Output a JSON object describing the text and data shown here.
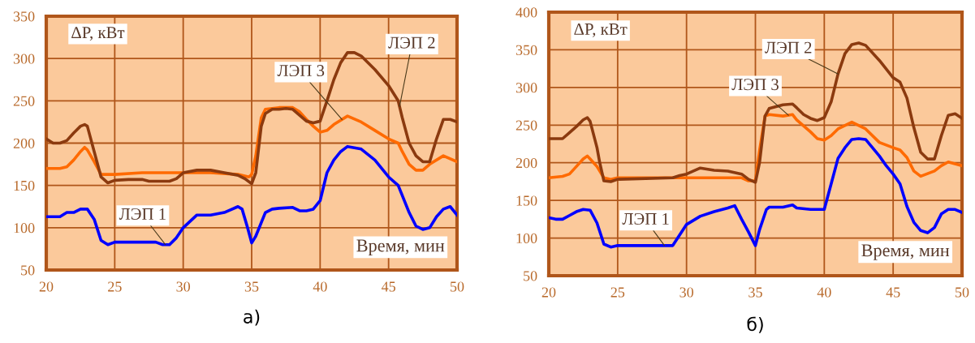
{
  "chart_data": [
    {
      "type": "line",
      "title": "а)",
      "xlabel": "Время, мин",
      "ylabel": "ΔP, кВт",
      "xlim": [
        20,
        50
      ],
      "xticks": [
        20,
        25,
        30,
        35,
        40,
        45,
        50
      ],
      "ylim": [
        50,
        350
      ],
      "yticks": [
        50,
        100,
        150,
        200,
        250,
        300,
        350
      ],
      "grid": true,
      "series": [
        {
          "name": "ЛЭП 1",
          "color": "#0000ff",
          "x": [
            20,
            21,
            21.5,
            22,
            22.5,
            23,
            23.5,
            24,
            24.5,
            25,
            27,
            28,
            28.5,
            29,
            29.5,
            30,
            31,
            32,
            33,
            34,
            34.3,
            34.7,
            35,
            35.3,
            36,
            36.5,
            37,
            38,
            38.5,
            39,
            39.5,
            40,
            40.5,
            41,
            41.5,
            42,
            43,
            44,
            45,
            45.7,
            46,
            46.5,
            47,
            47.5,
            48,
            48.5,
            49,
            49.5,
            50
          ],
          "values": [
            113,
            113,
            118,
            118,
            122,
            122,
            110,
            85,
            80,
            83,
            83,
            83,
            80,
            80,
            88,
            100,
            115,
            115,
            118,
            125,
            122,
            100,
            82,
            90,
            118,
            122,
            123,
            124,
            120,
            120,
            122,
            132,
            165,
            180,
            190,
            196,
            193,
            180,
            160,
            150,
            138,
            118,
            102,
            98,
            100,
            113,
            122,
            125,
            115
          ]
        },
        {
          "name": "ЛЭП 2",
          "color": "#8b3a0f",
          "x": [
            20,
            20.5,
            21,
            21.5,
            22,
            22.5,
            22.8,
            23,
            23.5,
            24,
            24.5,
            25,
            26,
            27,
            27.5,
            29,
            29.5,
            30,
            31,
            32,
            33,
            34,
            34.5,
            35,
            35.3,
            35.7,
            36,
            36.5,
            37,
            37.5,
            38,
            38.5,
            39,
            39.5,
            40,
            40.5,
            41,
            41.5,
            42,
            42.5,
            43,
            44,
            45,
            45.7,
            46,
            46.5,
            47,
            47.5,
            48,
            48.5,
            49,
            49.5,
            50
          ],
          "values": [
            205,
            200,
            200,
            203,
            212,
            220,
            222,
            220,
            190,
            160,
            153,
            156,
            157,
            157,
            155,
            155,
            158,
            165,
            168,
            168,
            165,
            162,
            158,
            152,
            165,
            220,
            235,
            240,
            240,
            241,
            240,
            233,
            226,
            224,
            226,
            250,
            275,
            295,
            307,
            307,
            303,
            287,
            268,
            250,
            230,
            200,
            185,
            178,
            178,
            205,
            228,
            228,
            225
          ]
        },
        {
          "name": "ЛЭП 3",
          "color": "#ff6a00",
          "x": [
            20,
            21,
            21.5,
            22,
            22.5,
            22.8,
            23,
            23.5,
            24,
            25,
            27,
            30,
            32,
            34,
            34.8,
            35,
            35.3,
            35.7,
            36,
            37,
            38,
            38.5,
            39,
            39.5,
            40,
            40.5,
            41,
            42,
            43,
            44,
            45,
            45.7,
            46,
            46.5,
            47,
            47.5,
            48,
            49,
            50
          ],
          "values": [
            170,
            170,
            172,
            180,
            190,
            195,
            192,
            178,
            163,
            163,
            165,
            165,
            165,
            163,
            160,
            163,
            185,
            230,
            240,
            242,
            242,
            237,
            228,
            220,
            213,
            215,
            222,
            232,
            225,
            215,
            205,
            200,
            190,
            175,
            168,
            168,
            175,
            185,
            178
          ]
        }
      ]
    },
    {
      "type": "line",
      "title": "б)",
      "xlabel": "Время, мин",
      "ylabel": "ΔP, кВт",
      "xlim": [
        20,
        50
      ],
      "xticks": [
        20,
        25,
        30,
        35,
        40,
        45,
        50
      ],
      "ylim": [
        50,
        400
      ],
      "yticks": [
        50,
        100,
        150,
        200,
        250,
        300,
        350,
        400
      ],
      "grid": true,
      "series": [
        {
          "name": "ЛЭП 1",
          "color": "#0000ff",
          "x": [
            20,
            20.5,
            21,
            21.5,
            22,
            22.5,
            23,
            23.5,
            24,
            24.5,
            25,
            29,
            30,
            31,
            32,
            33,
            33.5,
            34,
            34.5,
            35,
            35.3,
            35.8,
            36,
            37,
            37.7,
            38,
            39,
            40,
            40.5,
            41,
            41.5,
            42,
            42.5,
            43,
            44,
            44.5,
            45,
            45.5,
            46,
            46.5,
            47,
            47.5,
            48,
            48.5,
            49,
            49.5,
            50
          ],
          "values": [
            127,
            125,
            125,
            130,
            135,
            138,
            137,
            120,
            92,
            88,
            90,
            90,
            118,
            129,
            135,
            140,
            143,
            125,
            108,
            90,
            111,
            138,
            141,
            141,
            144,
            140,
            138,
            138,
            172,
            206,
            220,
            231,
            232,
            231,
            209,
            196,
            185,
            172,
            142,
            121,
            110,
            107,
            114,
            132,
            138,
            138,
            134
          ]
        },
        {
          "name": "ЛЭП 2",
          "color": "#8b3a0f",
          "x": [
            20,
            21,
            21.5,
            22,
            22.5,
            22.8,
            23,
            23.5,
            23.7,
            24,
            24.5,
            25,
            29,
            29.5,
            30,
            31,
            32,
            33,
            34,
            34.5,
            35,
            35.3,
            35.7,
            36,
            37,
            37.7,
            38,
            38.5,
            39,
            39.5,
            40,
            40.5,
            41,
            41.5,
            42,
            42.5,
            43,
            44,
            45,
            45.5,
            46,
            46.5,
            47,
            47.5,
            48,
            48.5,
            49,
            49.5,
            50
          ],
          "values": [
            232,
            232,
            240,
            248,
            257,
            260,
            255,
            220,
            200,
            176,
            175,
            178,
            180,
            183,
            185,
            193,
            190,
            189,
            185,
            178,
            174,
            200,
            262,
            272,
            277,
            278,
            273,
            264,
            259,
            256,
            260,
            281,
            318,
            345,
            357,
            359,
            356,
            336,
            313,
            307,
            286,
            247,
            214,
            205,
            205,
            236,
            263,
            265,
            259
          ]
        },
        {
          "name": "ЛЭП 3",
          "color": "#ff6a00",
          "x": [
            20,
            21,
            21.5,
            22,
            22.5,
            22.8,
            23,
            23.5,
            24,
            24.5,
            25,
            29,
            33,
            34,
            34.5,
            35,
            35.3,
            35.7,
            36,
            37,
            37.7,
            38,
            39,
            39.5,
            40,
            40.5,
            41,
            42,
            43,
            44,
            45,
            45.5,
            46,
            46.5,
            47,
            48,
            48.5,
            49,
            50
          ],
          "values": [
            180,
            182,
            185,
            195,
            205,
            209,
            205,
            195,
            180,
            178,
            180,
            180,
            180,
            180,
            176,
            176,
            216,
            262,
            264,
            262,
            264,
            257,
            241,
            232,
            230,
            236,
            245,
            254,
            245,
            227,
            220,
            217,
            207,
            189,
            182,
            189,
            196,
            201,
            196
          ]
        }
      ]
    }
  ]
}
